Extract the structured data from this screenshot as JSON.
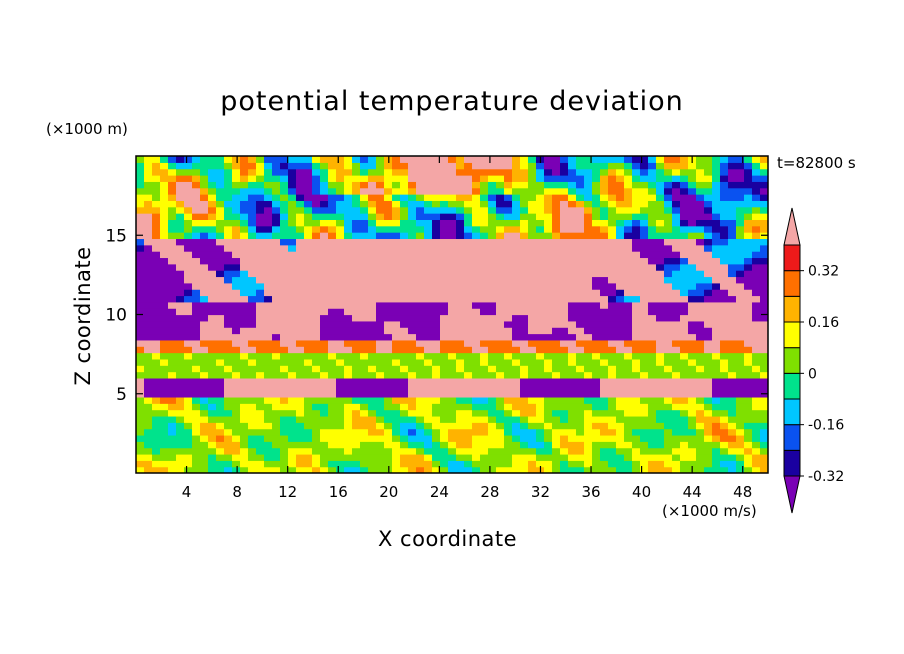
{
  "chart_data": {
    "type": "heatmap",
    "title": "potential temperature deviation",
    "xlabel": "X coordinate",
    "ylabel": "Z coordinate",
    "x_unit_label": "(×1000 m/s)",
    "y_unit_label": "(×1000 m)",
    "time_label": "t=82800 s",
    "x_ticks": [
      4,
      8,
      12,
      16,
      20,
      24,
      28,
      32,
      36,
      40,
      44,
      48
    ],
    "y_ticks": [
      5,
      10,
      15
    ],
    "xlim": [
      0,
      50
    ],
    "ylim": [
      0,
      20
    ],
    "colorbar": {
      "labels": [
        "0.32",
        "0.16",
        "0",
        "-0.16",
        "-0.32"
      ],
      "label_values": [
        0.32,
        0.16,
        0,
        -0.16,
        -0.32
      ],
      "levels": [
        -0.4,
        -0.32,
        -0.24,
        -0.16,
        -0.08,
        0,
        0.08,
        0.16,
        0.24,
        0.32,
        0.4
      ],
      "colors": [
        "#7a00b5",
        "#1a00a0",
        "#0a52f0",
        "#00c6ff",
        "#00e38c",
        "#7fe000",
        "#ffff00",
        "#ffb300",
        "#ff7000",
        "#ee1a1a",
        "#f4a6a6"
      ],
      "extend": "both"
    },
    "layers": [
      {
        "z_range": [
          15,
          20
        ],
        "description": "upper layer: mixed warm and cold regions"
      },
      {
        "z_range": [
          10,
          15
        ],
        "description": "warm pink band with cold purple patches"
      },
      {
        "z_range": [
          5,
          10
        ],
        "description": "stratified bands: purple, red/orange, green"
      },
      {
        "z_range": [
          0,
          5
        ],
        "description": "lower layer: turbulent eddies"
      }
    ]
  }
}
